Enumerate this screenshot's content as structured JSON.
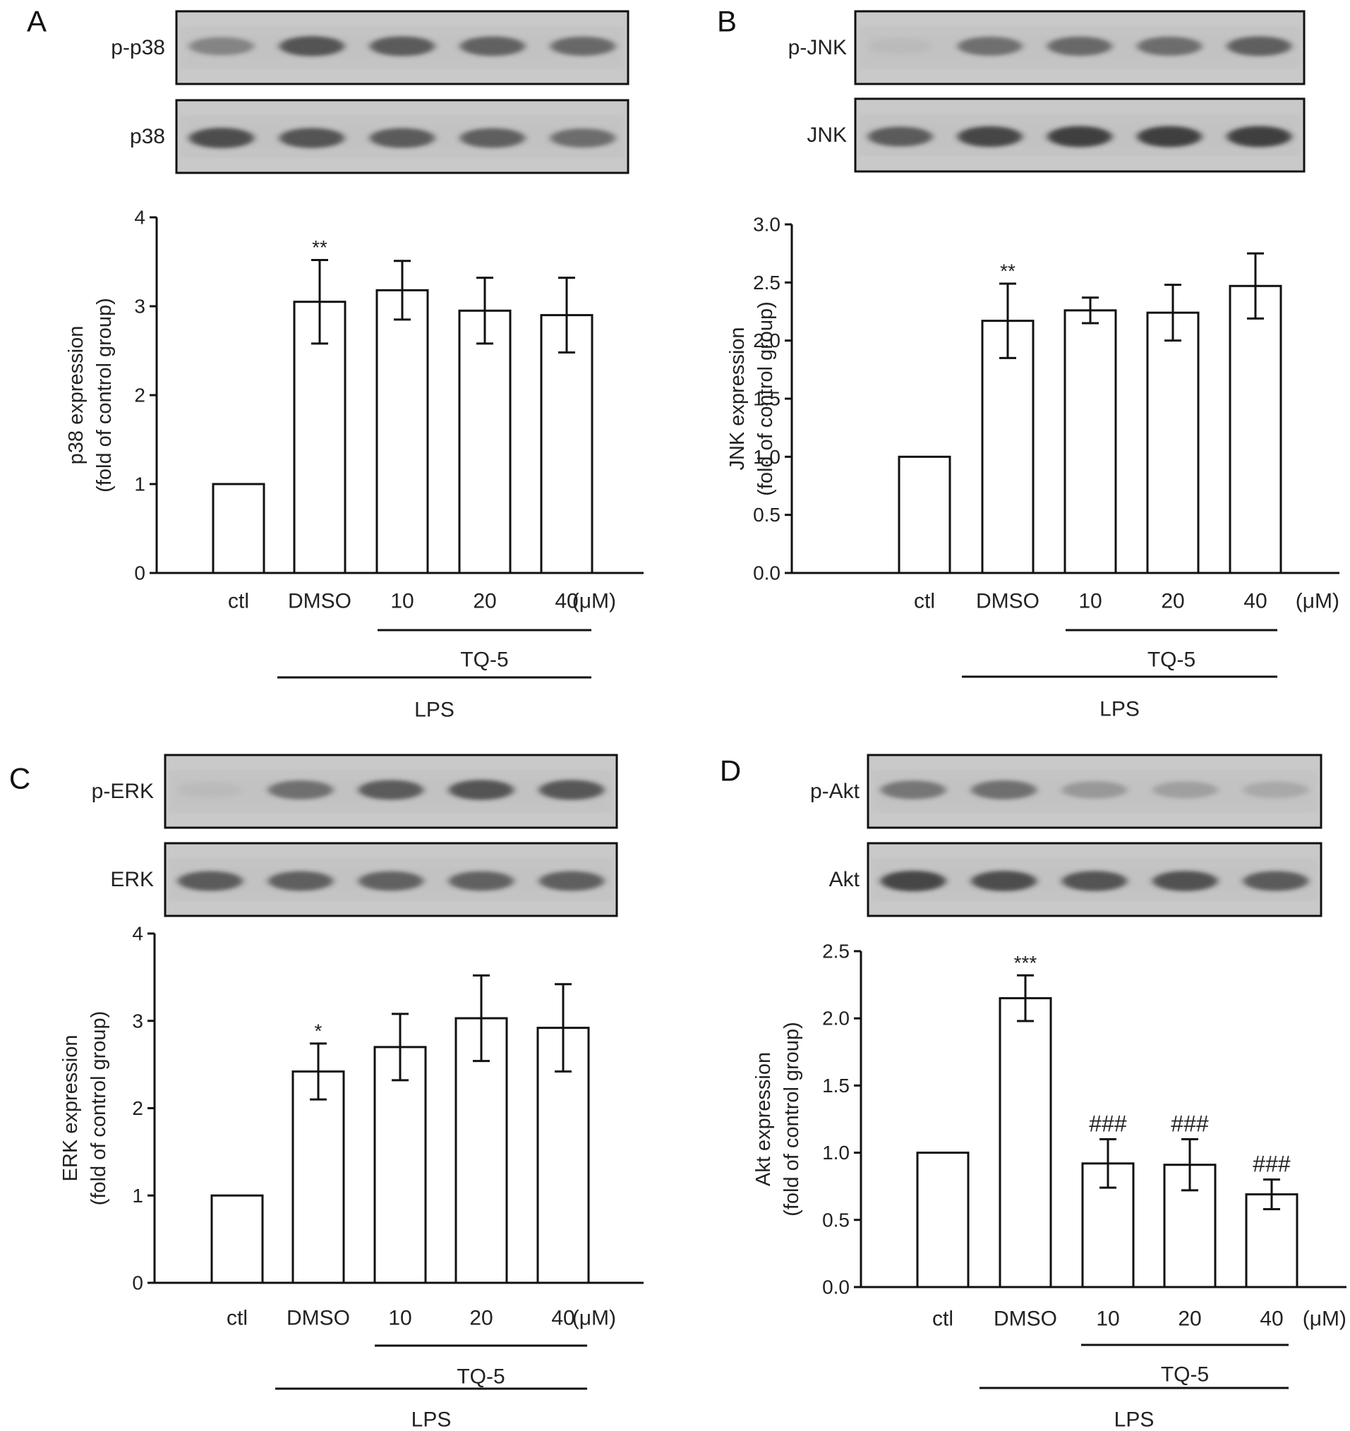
{
  "units_label": "(μM)",
  "colors": {
    "ink": "#111111",
    "blot_bg": "#c9c9c9",
    "band": "#2a2a2a",
    "bar_fill": "#ffffff"
  },
  "chart_data": [
    {
      "panel": "A",
      "type": "bar",
      "blot": {
        "rows": [
          {
            "label": "p-p38",
            "band_intensity": [
              0.45,
              0.8,
              0.75,
              0.7,
              0.65
            ]
          },
          {
            "label": "p38",
            "band_intensity": [
              0.85,
              0.8,
              0.75,
              0.72,
              0.62
            ]
          }
        ]
      },
      "categories": [
        "ctl",
        "DMSO",
        "10",
        "20",
        "40"
      ],
      "values": [
        1.0,
        3.05,
        3.18,
        2.95,
        2.9
      ],
      "errors": [
        0,
        0.47,
        0.33,
        0.37,
        0.42
      ],
      "significance": [
        "",
        "**",
        "",
        "",
        ""
      ],
      "ylabel": [
        "p38 expression",
        "(fold of control group)"
      ],
      "ylim": [
        0,
        4
      ],
      "yticks": [
        "0",
        "1",
        "2",
        "3",
        "4"
      ],
      "treatment": {
        "inner_label": "TQ-5",
        "outer_label": "LPS"
      }
    },
    {
      "panel": "B",
      "type": "bar",
      "blot": {
        "rows": [
          {
            "label": "p-JNK",
            "band_intensity": [
              0.05,
              0.6,
              0.65,
              0.62,
              0.72
            ]
          },
          {
            "label": "JNK",
            "band_intensity": [
              0.75,
              0.9,
              0.95,
              0.95,
              0.95
            ]
          }
        ]
      },
      "categories": [
        "ctl",
        "DMSO",
        "10",
        "20",
        "40"
      ],
      "values": [
        1.0,
        2.17,
        2.26,
        2.24,
        2.47
      ],
      "errors": [
        0,
        0.32,
        0.11,
        0.24,
        0.28
      ],
      "significance": [
        "",
        "**",
        "",
        "",
        ""
      ],
      "ylabel": [
        "JNK expression",
        "(fold of control group)"
      ],
      "ylim": [
        0,
        3
      ],
      "yticks": [
        "0.0",
        "0.5",
        "1.0",
        "1.5",
        "2.0",
        "2.5",
        "3.0"
      ],
      "treatment": {
        "inner_label": "TQ-5",
        "outer_label": "LPS"
      }
    },
    {
      "panel": "C",
      "type": "bar",
      "blot": {
        "rows": [
          {
            "label": "p-ERK",
            "band_intensity": [
              0.05,
              0.6,
              0.75,
              0.8,
              0.78
            ]
          },
          {
            "label": "ERK",
            "band_intensity": [
              0.75,
              0.72,
              0.7,
              0.7,
              0.72
            ]
          }
        ]
      },
      "categories": [
        "ctl",
        "DMSO",
        "10",
        "20",
        "40"
      ],
      "values": [
        1.0,
        2.42,
        2.7,
        3.03,
        2.92
      ],
      "errors": [
        0,
        0.32,
        0.38,
        0.49,
        0.5
      ],
      "significance": [
        "",
        "*",
        "",
        "",
        ""
      ],
      "ylabel": [
        "ERK expression",
        "(fold of control group)"
      ],
      "ylim": [
        0,
        4
      ],
      "yticks": [
        "0",
        "1",
        "2",
        "3",
        "4"
      ],
      "treatment": {
        "inner_label": "TQ-5",
        "outer_label": "LPS"
      }
    },
    {
      "panel": "D",
      "type": "bar",
      "blot": {
        "rows": [
          {
            "label": "p-Akt",
            "band_intensity": [
              0.55,
              0.6,
              0.3,
              0.25,
              0.18
            ]
          },
          {
            "label": "Akt",
            "band_intensity": [
              0.9,
              0.85,
              0.8,
              0.82,
              0.75
            ]
          }
        ]
      },
      "categories": [
        "ctl",
        "DMSO",
        "10",
        "20",
        "40"
      ],
      "values": [
        1.0,
        2.15,
        0.92,
        0.91,
        0.69
      ],
      "errors": [
        0,
        0.17,
        0.18,
        0.19,
        0.11
      ],
      "significance": [
        "",
        "***",
        "###",
        "###",
        "###"
      ],
      "ylabel": [
        "Akt expression",
        "(fold of control group)"
      ],
      "ylim": [
        0,
        2.5
      ],
      "yticks": [
        "0.0",
        "0.5",
        "1.0",
        "1.5",
        "2.0",
        "2.5"
      ],
      "treatment": {
        "inner_label": "TQ-5",
        "outer_label": "LPS"
      }
    }
  ]
}
